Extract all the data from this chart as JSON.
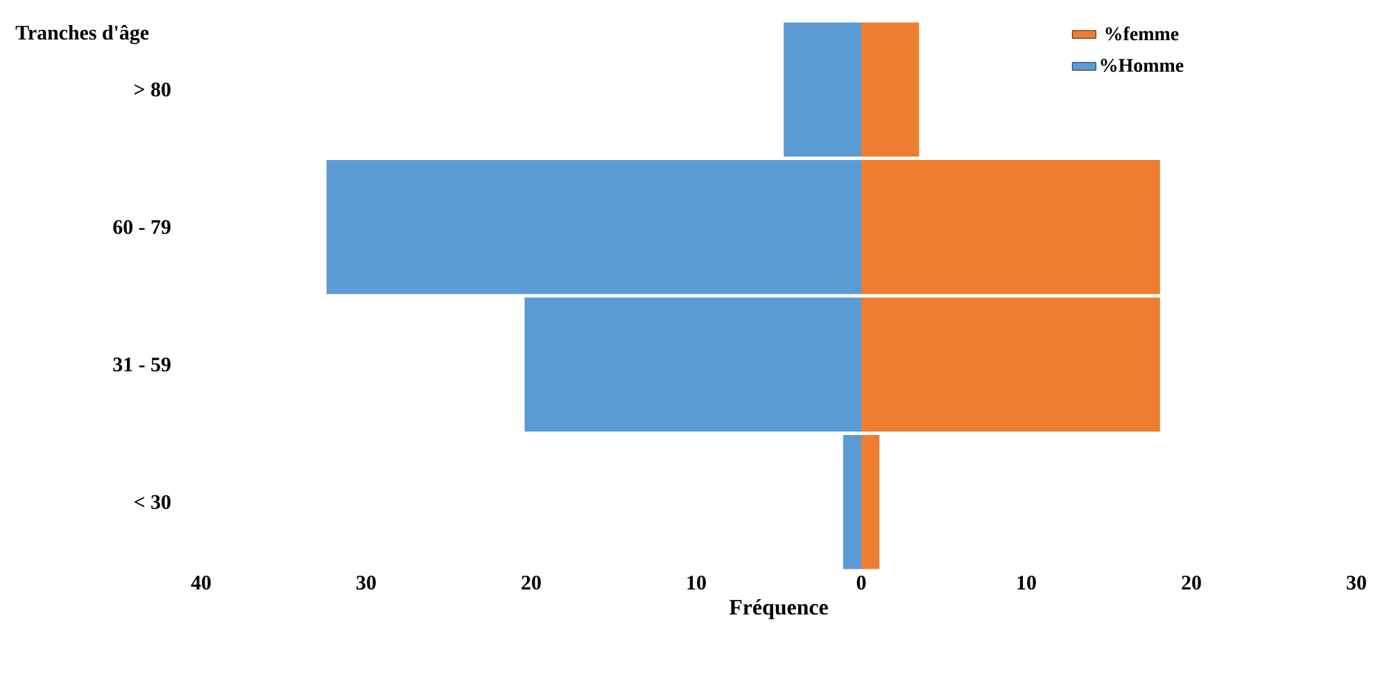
{
  "chart_data": {
    "type": "bar",
    "orientation": "horizontal",
    "ylabel": "Tranches d'âge",
    "xlabel": "Fréquence",
    "categories": [
      "> 80",
      "60 - 79",
      "31 - 59",
      "< 30"
    ],
    "series": [
      {
        "name": "%femme",
        "color": "#ed7d31",
        "values": [
          3.5,
          18.1,
          18.1,
          1.1
        ]
      },
      {
        "name": "%Homme",
        "color": "#5b9bd5",
        "values": [
          -4.7,
          -32.4,
          -20.4,
          -1.1
        ]
      }
    ],
    "xlim": [
      -40,
      30
    ],
    "xticks": [
      {
        "value": -40,
        "label": "40"
      },
      {
        "value": -30,
        "label": "30"
      },
      {
        "value": -20,
        "label": "20"
      },
      {
        "value": -10,
        "label": "10"
      },
      0,
      10,
      20,
      30
    ],
    "legend": "top right",
    "stacked": true,
    "grid": false
  }
}
